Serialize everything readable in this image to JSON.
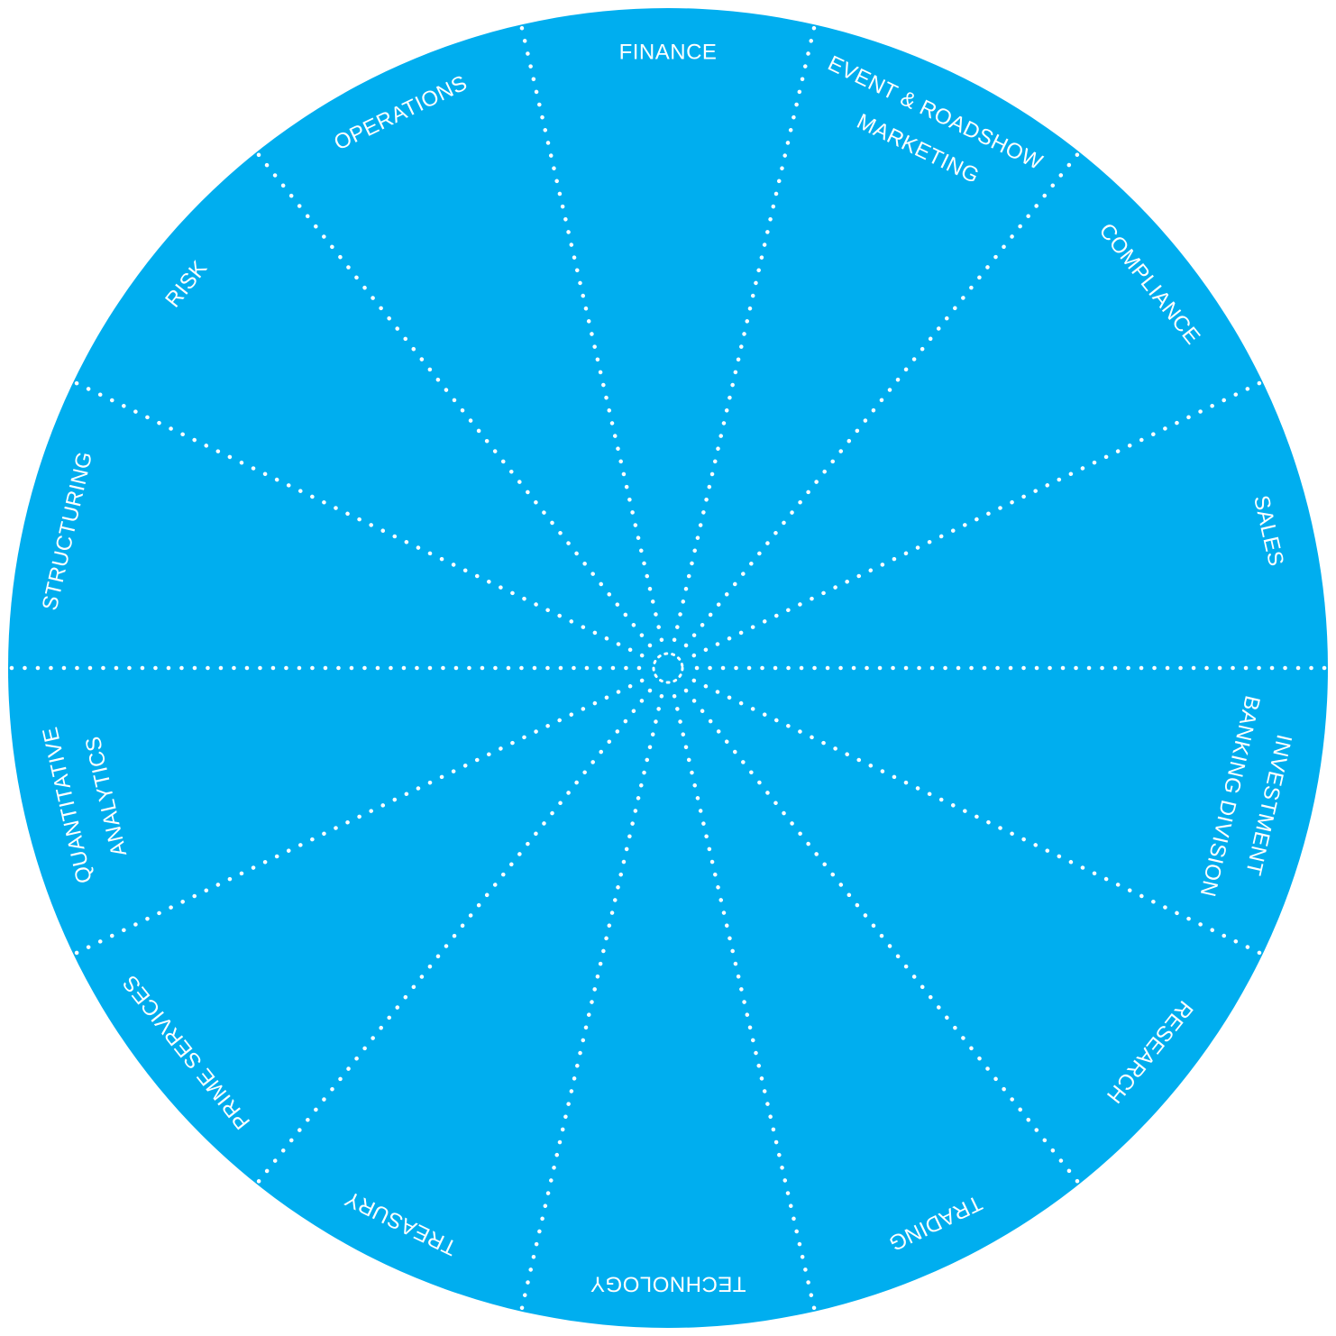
{
  "colors": {
    "disc": "#00aeef",
    "divider": "#ffffff",
    "label": "#ffffff",
    "background": "#ffffff"
  },
  "segments": [
    {
      "label_lines": [
        "FINANCE"
      ]
    },
    {
      "label_lines": [
        "EVENT & ROADSHOW",
        "MARKETING"
      ]
    },
    {
      "label_lines": [
        "COMPLIANCE"
      ]
    },
    {
      "label_lines": [
        "SALES"
      ]
    },
    {
      "label_lines": [
        "INVESTMENT",
        "BANKING DIVISION"
      ]
    },
    {
      "label_lines": [
        "RESEARCH"
      ]
    },
    {
      "label_lines": [
        "TRADING"
      ]
    },
    {
      "label_lines": [
        "TECHNOLOGY"
      ]
    },
    {
      "label_lines": [
        "TREASURY"
      ]
    },
    {
      "label_lines": [
        "PRIME SERVICES"
      ]
    },
    {
      "label_lines": [
        "QUANTITATIVE",
        "ANALYTICS"
      ]
    },
    {
      "label_lines": [
        "STRUCTURING"
      ]
    },
    {
      "label_lines": [
        "RISK"
      ]
    },
    {
      "label_lines": [
        "OPERATIONS"
      ]
    }
  ]
}
